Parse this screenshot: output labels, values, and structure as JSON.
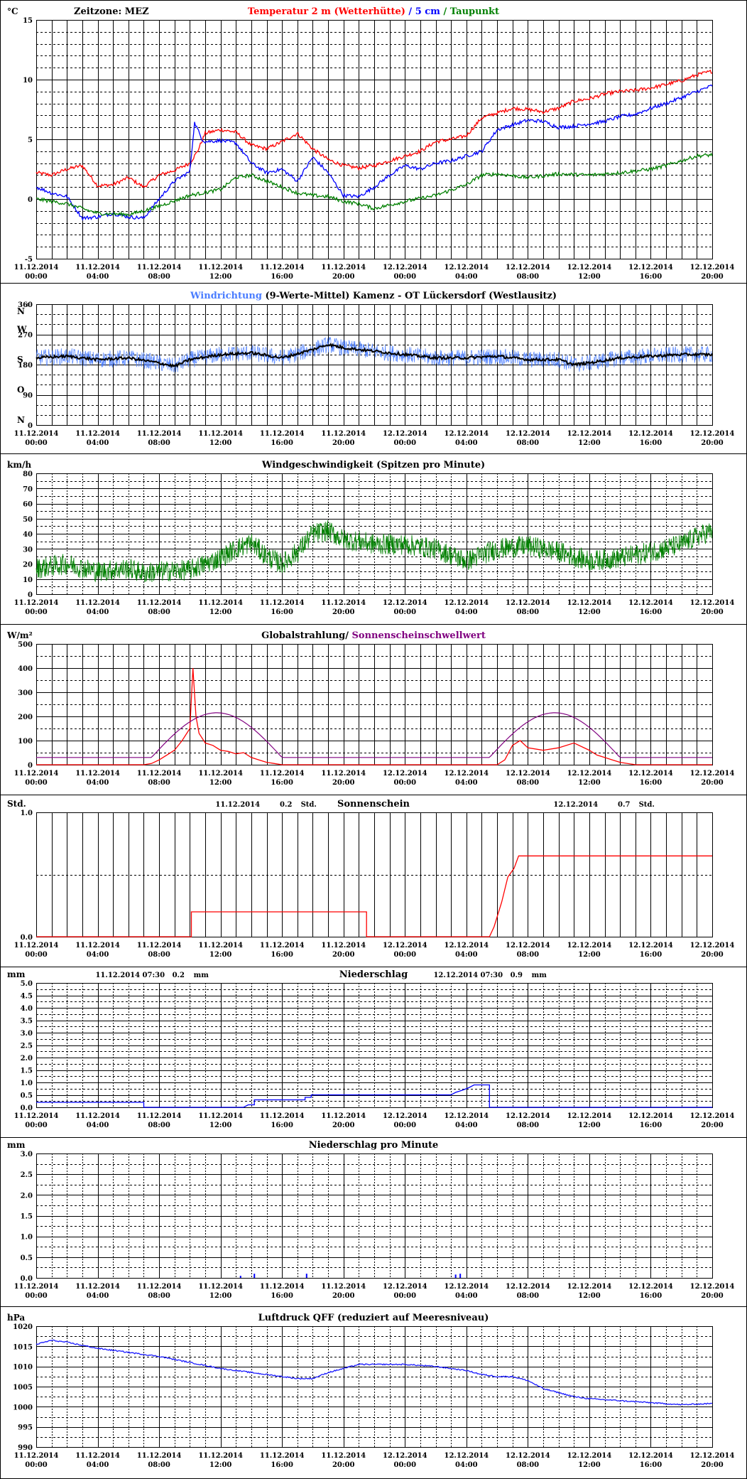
{
  "colors": {
    "red": "#ff0000",
    "blue": "#0000ff",
    "green": "#008000",
    "lightblue": "#4a7dff",
    "navy": "#000080",
    "purple": "#800080",
    "dblue": "#1a1aff"
  },
  "time_labels": [
    [
      "11.12.2014",
      "00:00"
    ],
    [
      "11.12.2014",
      "04:00"
    ],
    [
      "11.12.2014",
      "08:00"
    ],
    [
      "11.12.2014",
      "12:00"
    ],
    [
      "11.12.2014",
      "16:00"
    ],
    [
      "11.12.2014",
      "20:00"
    ],
    [
      "12.12.2014",
      "00:00"
    ],
    [
      "12.12.2014",
      "04:00"
    ],
    [
      "12.12.2014",
      "08:00"
    ],
    [
      "12.12.2014",
      "12:00"
    ],
    [
      "12.12.2014",
      "16:00"
    ],
    [
      "12.12.2014",
      "20:00"
    ]
  ],
  "chart_data": [
    {
      "id": "temp",
      "type": "line",
      "unit": "°C",
      "ylim": [
        -5,
        15
      ],
      "yticks": [
        -5,
        0,
        5,
        10,
        15
      ],
      "minor_step": 1,
      "timezone": "Zeitzone: MEZ",
      "title_parts": [
        {
          "text": "Temperatur 2 m (Wetterhütte)",
          "color": "#ff0000"
        },
        {
          "text": "  /  ",
          "color": "#0000ff"
        },
        {
          "text": "5 cm",
          "color": "#0000ff"
        },
        {
          "text": " / ",
          "color": "#008000"
        },
        {
          "text": "Taupunkt",
          "color": "#008000"
        }
      ],
      "x_hours": [
        0,
        44
      ],
      "series": [
        {
          "name": "Temperatur 2 m (Wetterhütte)",
          "color": "#ff0000",
          "x": [
            0,
            1,
            2,
            3,
            4,
            5,
            6,
            7,
            8,
            9,
            10,
            10.5,
            11,
            12,
            13,
            14,
            15,
            16,
            17,
            18,
            19,
            20,
            21,
            22,
            23,
            24,
            25,
            26,
            27,
            28,
            29,
            30,
            31,
            32,
            33,
            34,
            35,
            36,
            37,
            38,
            39,
            40,
            41,
            42,
            43,
            44
          ],
          "y": [
            2.2,
            2.0,
            2.5,
            2.8,
            1.1,
            1.2,
            1.8,
            1.0,
            2.0,
            2.4,
            3.0,
            4.0,
            5.5,
            5.8,
            5.6,
            4.5,
            4.2,
            4.8,
            5.5,
            4.2,
            3.3,
            2.8,
            2.6,
            2.8,
            3.2,
            3.6,
            4.0,
            4.8,
            5.0,
            5.3,
            6.8,
            7.2,
            7.6,
            7.5,
            7.3,
            7.6,
            8.2,
            8.4,
            8.8,
            9.0,
            9.1,
            9.3,
            9.6,
            9.9,
            10.4,
            10.7
          ]
        },
        {
          "name": "5 cm",
          "color": "#0000ff",
          "x": [
            0,
            1,
            2,
            3,
            4,
            5,
            6,
            7,
            8,
            9,
            10,
            10.3,
            10.8,
            11,
            12,
            13,
            14,
            15,
            16,
            17,
            18,
            19,
            20,
            21,
            22,
            23,
            24,
            25,
            26,
            27,
            28,
            29,
            30,
            31,
            32,
            33,
            34,
            35,
            36,
            37,
            38,
            39,
            40,
            41,
            42,
            43,
            44
          ],
          "y": [
            1.0,
            0.5,
            0.2,
            -1.6,
            -1.5,
            -1.2,
            -1.5,
            -1.6,
            0.0,
            1.5,
            2.3,
            6.4,
            5.0,
            4.8,
            4.9,
            4.7,
            3.0,
            2.2,
            2.5,
            1.5,
            3.5,
            2.2,
            0.3,
            0.2,
            1.0,
            2.0,
            2.8,
            2.5,
            3.0,
            3.2,
            3.6,
            4.0,
            5.8,
            6.2,
            6.6,
            6.5,
            6.0,
            6.1,
            6.3,
            6.5,
            6.9,
            7.1,
            7.6,
            8.0,
            8.5,
            9.0,
            9.5
          ]
        },
        {
          "name": "Taupunkt",
          "color": "#008000",
          "x": [
            0,
            2,
            4,
            6,
            7,
            8,
            10,
            12,
            13,
            14,
            15,
            16,
            17,
            18,
            19,
            20,
            21,
            22,
            23,
            24,
            26,
            28,
            29,
            30,
            32,
            34,
            36,
            38,
            40,
            41,
            42,
            43,
            44
          ],
          "y": [
            0.0,
            -0.4,
            -1.2,
            -1.3,
            -1.0,
            -0.6,
            0.3,
            0.8,
            1.8,
            2.0,
            1.5,
            1.0,
            0.5,
            0.3,
            0.2,
            -0.2,
            -0.4,
            -0.8,
            -0.5,
            -0.2,
            0.3,
            1.2,
            2.0,
            2.1,
            1.8,
            2.1,
            2.0,
            2.2,
            2.5,
            2.8,
            3.2,
            3.6,
            3.7
          ]
        }
      ]
    },
    {
      "id": "wind_dir",
      "type": "line",
      "ylim": [
        0,
        360
      ],
      "yticks": [
        0,
        90,
        180,
        270,
        360
      ],
      "compass": [
        [
          "N",
          360
        ],
        [
          "W",
          270
        ],
        [
          "S",
          180
        ],
        [
          "O",
          90
        ],
        [
          "N",
          0
        ]
      ],
      "minor_step": 30,
      "unit": "°",
      "title_parts": [
        {
          "text": "Windrichtung",
          "color": "#4a7dff"
        },
        {
          "text": " (9-Werte-Mittel)",
          "color": "#000000"
        },
        {
          "text": "        Kamenz - OT Lückersdorf (Westlausitz)",
          "color": "#000000"
        }
      ],
      "series": [
        {
          "name": "Windrichtung",
          "color": "#4a7dff",
          "role": "raw"
        },
        {
          "name": "9-Werte-Mittel",
          "color": "#000000",
          "role": "mean",
          "x": [
            0,
            2,
            4,
            6,
            8,
            9,
            10,
            12,
            14,
            16,
            18,
            19,
            20,
            22,
            24,
            26,
            28,
            30,
            32,
            34,
            35,
            36,
            38,
            40,
            42,
            44
          ],
          "y": [
            200,
            205,
            195,
            200,
            185,
            175,
            195,
            210,
            215,
            200,
            225,
            240,
            230,
            220,
            210,
            200,
            200,
            205,
            195,
            195,
            180,
            185,
            200,
            205,
            210,
            210
          ]
        }
      ]
    },
    {
      "id": "wind_speed",
      "type": "line",
      "unit": "km/h",
      "ylim": [
        0,
        80
      ],
      "yticks": [
        0,
        10,
        20,
        30,
        40,
        50,
        60,
        70,
        80
      ],
      "minor_step": 5,
      "title_parts": [
        {
          "text": "Windgeschwindigkeit (Spitzen pro Minute)",
          "color": "#000000"
        }
      ],
      "series": [
        {
          "name": "Windgeschwindigkeit",
          "color": "#008000",
          "x": [
            0,
            2,
            4,
            6,
            7,
            8,
            10,
            12,
            13,
            14,
            15,
            16,
            17,
            18,
            19,
            20,
            21,
            22,
            24,
            26,
            28,
            30,
            32,
            34,
            36,
            38,
            40,
            42,
            43,
            44
          ],
          "y": [
            17,
            20,
            15,
            17,
            14,
            15,
            16,
            24,
            30,
            34,
            25,
            20,
            28,
            40,
            42,
            36,
            35,
            33,
            33,
            30,
            22,
            30,
            32,
            28,
            22,
            24,
            28,
            33,
            38,
            42
          ]
        }
      ]
    },
    {
      "id": "radiation",
      "type": "line",
      "unit": "W/m²",
      "ylim": [
        0,
        500
      ],
      "yticks": [
        0,
        100,
        200,
        300,
        400,
        500
      ],
      "minor_step": 50,
      "title_parts": [
        {
          "text": "Globalstrahlung/ ",
          "color": "#000000"
        },
        {
          "text": "Sonnenscheinschwellwert",
          "color": "#800080"
        }
      ],
      "series": [
        {
          "name": "Globalstrahlung",
          "color": "#ff0000",
          "x": [
            0,
            7,
            7.5,
            8,
            8.5,
            9,
            9.5,
            10,
            10.2,
            10.4,
            10.6,
            10.8,
            11,
            11.5,
            12,
            12.5,
            13,
            13.5,
            14,
            14.5,
            15,
            15.5,
            16,
            30,
            30.5,
            31,
            31.5,
            32,
            33,
            34,
            35,
            36,
            36.5,
            37,
            37.5,
            38,
            39,
            40,
            44
          ],
          "y": [
            0,
            0,
            5,
            20,
            40,
            60,
            100,
            150,
            400,
            200,
            130,
            110,
            90,
            80,
            60,
            55,
            45,
            50,
            30,
            20,
            10,
            5,
            0,
            0,
            20,
            80,
            100,
            70,
            60,
            70,
            90,
            60,
            40,
            30,
            20,
            10,
            0,
            0,
            0
          ]
        },
        {
          "name": "Sonnenscheinschwellwert",
          "color": "#800080",
          "curves": [
            [
              7.5,
              16,
              215
            ],
            [
              29.5,
              38,
              215
            ]
          ],
          "base": 30
        }
      ]
    },
    {
      "id": "sunshine",
      "type": "line",
      "unit": "Std.",
      "ylim": [
        0,
        1
      ],
      "yticks": [
        0,
        1
      ],
      "ytick_labels": [
        "0.0",
        "1.0"
      ],
      "dashed_mid": true,
      "title_parts": [
        {
          "text": "Sonnenschein",
          "color": "#000000"
        }
      ],
      "annotations": [
        {
          "date": "11.12.2014",
          "value": "0.2",
          "unit": "Std.",
          "at": 14.5
        },
        {
          "date": "12.12.2014",
          "value": "0.7",
          "unit": "Std.",
          "at": 36.5
        }
      ],
      "series": [
        {
          "name": "Sonnenschein",
          "color": "#ff0000",
          "x": [
            0,
            10.1,
            10.1,
            21.5,
            21.5,
            29.5,
            29.8,
            30.3,
            30.7,
            31.1,
            31.4,
            31.4,
            44
          ],
          "y": [
            0,
            0,
            0.2,
            0.2,
            0,
            0,
            0.08,
            0.28,
            0.48,
            0.55,
            0.65,
            0.65,
            0.65
          ]
        }
      ]
    },
    {
      "id": "precip",
      "type": "line",
      "unit": "mm",
      "ylim": [
        0,
        5
      ],
      "yticks": [
        0,
        0.5,
        1.0,
        1.5,
        2.0,
        2.5,
        3.0,
        3.5,
        4.0,
        4.5,
        5.0
      ],
      "ytick_labels": [
        "0.0",
        "0.5",
        "1.0",
        "1.5",
        "2.0",
        "2.5",
        "3.0",
        "3.5",
        "4.0",
        "4.5",
        "5.0"
      ],
      "minor_step": 0.25,
      "dense_grid": true,
      "title_parts": [
        {
          "text": "Niederschlag",
          "color": "#000000"
        }
      ],
      "annotations": [
        {
          "date": "11.12.2014 07:30",
          "value": "0.2",
          "unit": "mm",
          "at": 7.5
        },
        {
          "date": "12.12.2014 07:30",
          "value": "0.9",
          "unit": "mm",
          "at": 29.5
        }
      ],
      "series": [
        {
          "name": "Niederschlag",
          "color": "#0000ff",
          "x": [
            0,
            7,
            7,
            13.5,
            13.8,
            14.2,
            14.2,
            17.5,
            17.5,
            17.9,
            17.9,
            27,
            27.3,
            27.8,
            28.2,
            28.5,
            28.5,
            29.5,
            29.5,
            44
          ],
          "y": [
            0.2,
            0.2,
            0,
            0,
            0.1,
            0.1,
            0.3,
            0.3,
            0.4,
            0.4,
            0.5,
            0.5,
            0.6,
            0.7,
            0.8,
            0.9,
            0.9,
            0.9,
            0,
            0
          ]
        }
      ]
    },
    {
      "id": "precip_min",
      "type": "bar",
      "unit": "mm",
      "ylim": [
        0,
        3
      ],
      "yticks": [
        0,
        0.5,
        1.0,
        1.5,
        2.0,
        2.5,
        3.0
      ],
      "ytick_labels": [
        "0.0",
        "0.5",
        "1.0",
        "1.5",
        "2.0",
        "2.5",
        "3.0"
      ],
      "minor_step": 0.25,
      "title_parts": [
        {
          "text": "Niederschlag pro Minute",
          "color": "#000000"
        }
      ],
      "series": [
        {
          "name": "Niederschlag pro Minute",
          "color": "#0000ff",
          "x": [
            13.3,
            14.2,
            17.6,
            27.3,
            27.6
          ],
          "y": [
            0.05,
            0.1,
            0.1,
            0.08,
            0.1
          ]
        }
      ]
    },
    {
      "id": "pressure",
      "type": "line",
      "unit": "hPa",
      "ylim": [
        990,
        1020
      ],
      "yticks": [
        990,
        995,
        1000,
        1005,
        1010,
        1015,
        1020
      ],
      "minor_step": 2.5,
      "title_parts": [
        {
          "text": "Luftdruck QFF (reduziert auf Meeresniveau)",
          "color": "#000000"
        }
      ],
      "series": [
        {
          "name": "Luftdruck QFF",
          "color": "#1a1aff",
          "x": [
            0,
            1,
            2,
            4,
            6,
            8,
            10,
            12,
            14,
            16,
            17,
            18,
            19,
            20,
            21,
            22,
            24,
            26,
            28,
            29,
            30,
            31,
            32,
            33,
            34,
            35,
            36,
            38,
            40,
            42,
            44
          ],
          "y": [
            1015.5,
            1016.5,
            1016,
            1014.5,
            1013.5,
            1012.5,
            1011,
            1009.5,
            1008.5,
            1007.5,
            1007,
            1007,
            1008.5,
            1009.5,
            1010.5,
            1010.5,
            1010.5,
            1010,
            1009,
            1008,
            1007.5,
            1007.5,
            1006.5,
            1004.5,
            1003.5,
            1002.5,
            1002,
            1001.5,
            1001,
            1000.5,
            1000.8
          ]
        }
      ]
    }
  ]
}
